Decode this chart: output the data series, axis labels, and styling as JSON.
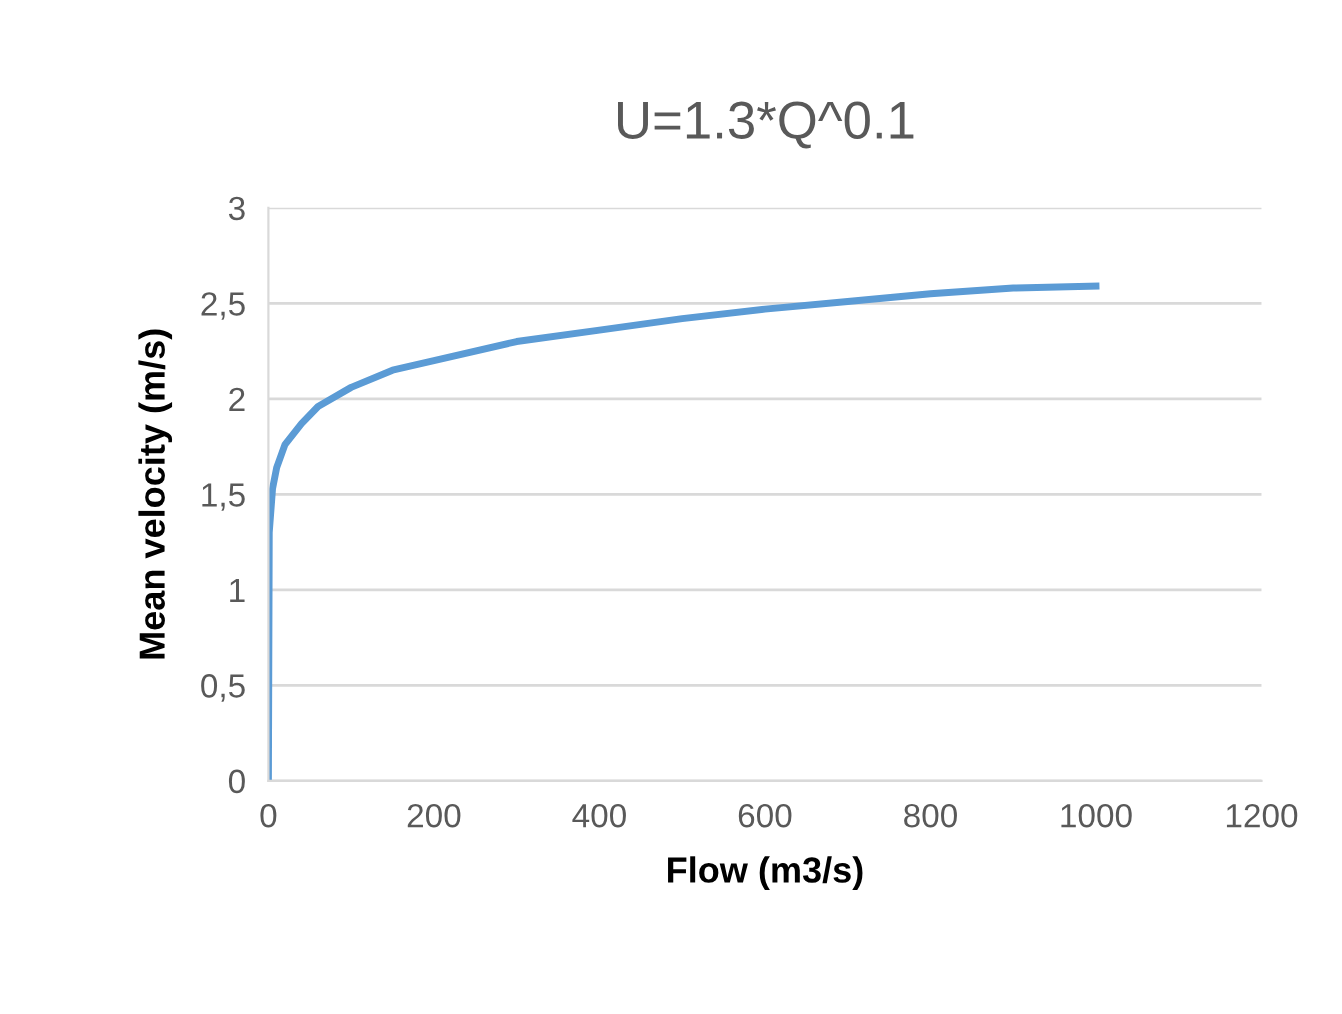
{
  "chart_data": {
    "type": "line",
    "title": "U=1.3*Q^0.1",
    "xlabel": "Flow (m3/s)",
    "ylabel": "Mean velocity (m/s)",
    "x": [
      0,
      1,
      5,
      10,
      20,
      40,
      60,
      100,
      150,
      200,
      300,
      400,
      500,
      600,
      700,
      800,
      900,
      1000
    ],
    "series": [
      {
        "color": "#5b9bd5",
        "values": [
          0,
          1.3,
          1.53,
          1.64,
          1.76,
          1.87,
          1.96,
          2.06,
          2.15,
          2.2,
          2.3,
          2.36,
          2.42,
          2.47,
          2.51,
          2.55,
          2.58,
          2.59
        ]
      }
    ],
    "xlim": [
      0,
      1200
    ],
    "xticks": [
      0,
      200,
      400,
      600,
      800,
      1000,
      1200
    ],
    "ylim": [
      0,
      3
    ],
    "yticks": [
      0,
      {
        "value": 0.5,
        "label": "0,5"
      },
      1,
      {
        "value": 1.5,
        "label": "1,5"
      },
      2,
      {
        "value": 2.5,
        "label": "2,5"
      },
      3
    ],
    "grid": "y",
    "marker": "none",
    "line_style": "solid"
  }
}
